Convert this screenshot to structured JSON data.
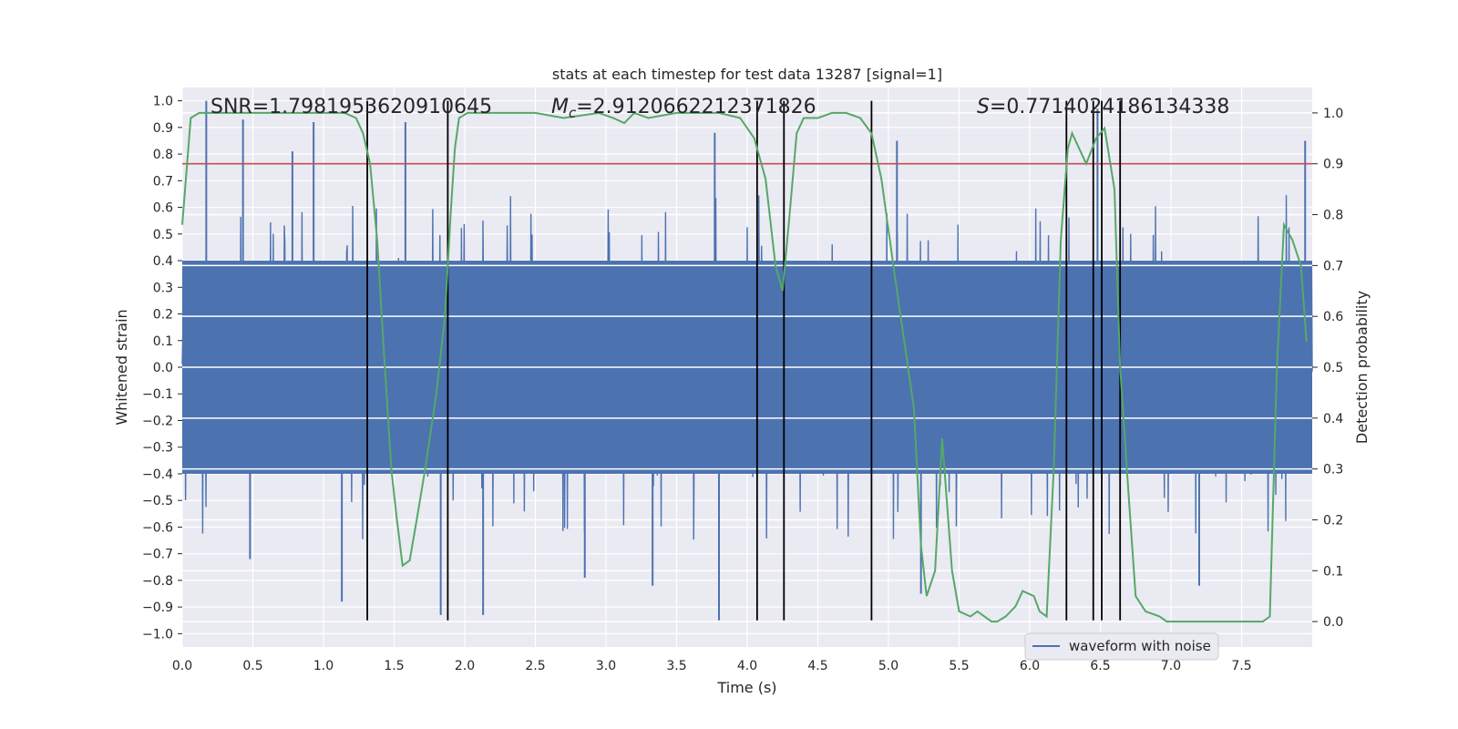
{
  "chart_data": {
    "type": "line",
    "title": "stats at each timestep for test data 13287 [signal=1]",
    "xlabel": "Time (s)",
    "ylabel_left": "Whitened strain",
    "ylabel_right": "Detection probability",
    "xlim": [
      0.0,
      8.0
    ],
    "ylim_left": [
      -1.05,
      1.05
    ],
    "ylim_right": [
      -0.05,
      1.05
    ],
    "xticks": [
      0.0,
      0.5,
      1.0,
      1.5,
      2.0,
      2.5,
      3.0,
      3.5,
      4.0,
      4.5,
      5.0,
      5.5,
      6.0,
      6.5,
      7.0,
      7.5
    ],
    "xtick_labels": [
      "0.0",
      "0.5",
      "1.0",
      "1.5",
      "2.0",
      "2.5",
      "3.0",
      "3.5",
      "4.0",
      "4.5",
      "5.0",
      "5.5",
      "6.0",
      "6.5",
      "7.0",
      "7.5"
    ],
    "yticks_left": [
      1.0,
      0.9,
      0.8,
      0.7,
      0.6,
      0.5,
      0.4,
      0.3,
      0.2,
      0.1,
      0.0,
      -0.1,
      -0.2,
      -0.3,
      -0.4,
      -0.5,
      -0.6,
      -0.7,
      -0.8,
      -0.9,
      -1.0
    ],
    "ytick_labels_left": [
      "1.0",
      "0.9",
      "0.8",
      "0.7",
      "0.6",
      "0.5",
      "0.4",
      "0.3",
      "0.2",
      "0.1",
      "0.0",
      "−0.1",
      "−0.2",
      "−0.3",
      "−0.4",
      "−0.5",
      "−0.6",
      "−0.7",
      "−0.8",
      "−0.9",
      "−1.0"
    ],
    "yticks_right": [
      1.0,
      0.9,
      0.8,
      0.7,
      0.6,
      0.5,
      0.4,
      0.3,
      0.2,
      0.1,
      0.0
    ],
    "ytick_labels_right": [
      "1.0",
      "0.9",
      "0.8",
      "0.7",
      "0.6",
      "0.5",
      "0.4",
      "0.3",
      "0.2",
      "0.1",
      "0.0"
    ],
    "grid": true,
    "threshold": {
      "axis": "right",
      "value": 0.9,
      "color": "#c44e52"
    },
    "vertical_lines": [
      1.31,
      1.88,
      4.07,
      4.26,
      4.88,
      6.26,
      6.45,
      6.51,
      6.64
    ],
    "vertical_line_range": [
      -0.95,
      1.0
    ],
    "annotations": {
      "snr": "SNR=1.7981953620910645",
      "mc_symbol": "M",
      "mc_sub": "c",
      "mc_value": "=2.9120662212371826",
      "s_symbol": "S",
      "s_value": "=0.7714024186134338"
    },
    "series": [
      {
        "name": "waveform with noise",
        "axis": "left",
        "color": "#4c72b0",
        "kind": "noise-envelope",
        "sample_rate_hz": 256,
        "envelope": {
          "core": 0.4,
          "typical_peak": 0.65,
          "max": 1.0,
          "min": -0.95
        },
        "spikes": [
          {
            "x": 0.17,
            "y": 1.0
          },
          {
            "x": 0.43,
            "y": 0.93
          },
          {
            "x": 0.78,
            "y": 0.81
          },
          {
            "x": 0.93,
            "y": 0.92
          },
          {
            "x": 1.58,
            "y": 0.92
          },
          {
            "x": 3.77,
            "y": 0.88
          },
          {
            "x": 5.06,
            "y": 0.85
          },
          {
            "x": 6.48,
            "y": 0.97
          },
          {
            "x": 7.95,
            "y": 0.85
          },
          {
            "x": 1.13,
            "y": -0.88
          },
          {
            "x": 1.83,
            "y": -0.93
          },
          {
            "x": 2.13,
            "y": -0.93
          },
          {
            "x": 3.8,
            "y": -0.95
          },
          {
            "x": 3.33,
            "y": -0.82
          },
          {
            "x": 5.23,
            "y": -0.85
          },
          {
            "x": 7.2,
            "y": -0.82
          },
          {
            "x": 2.85,
            "y": -0.79
          },
          {
            "x": 0.48,
            "y": -0.72
          }
        ]
      },
      {
        "name": "detection probability",
        "axis": "right",
        "color": "#55a868",
        "x": [
          0.0,
          0.06,
          0.12,
          0.2,
          0.3,
          0.5,
          0.8,
          1.0,
          1.15,
          1.23,
          1.28,
          1.33,
          1.38,
          1.43,
          1.48,
          1.52,
          1.56,
          1.61,
          1.66,
          1.72,
          1.8,
          1.86,
          1.9,
          1.93,
          1.96,
          2.02,
          2.2,
          2.5,
          2.7,
          2.95,
          3.05,
          3.13,
          3.2,
          3.3,
          3.5,
          3.8,
          3.95,
          4.05,
          4.13,
          4.2,
          4.25,
          4.3,
          4.35,
          4.4,
          4.5,
          4.6,
          4.7,
          4.8,
          4.88,
          4.95,
          5.05,
          5.18,
          5.23,
          5.27,
          5.33,
          5.38,
          5.45,
          5.5,
          5.58,
          5.63,
          5.68,
          5.73,
          5.77,
          5.83,
          5.9,
          5.95,
          6.03,
          6.07,
          6.12,
          6.17,
          6.22,
          6.27,
          6.3,
          6.35,
          6.4,
          6.47,
          6.53,
          6.6,
          6.64,
          6.7,
          6.75,
          6.82,
          6.92,
          6.97,
          7.05,
          7.2,
          7.4,
          7.55,
          7.65,
          7.7,
          7.75,
          7.8,
          7.86,
          7.92,
          7.96
        ],
        "y": [
          0.78,
          0.99,
          1.0,
          1.0,
          1.0,
          1.0,
          1.0,
          1.0,
          1.0,
          0.99,
          0.96,
          0.9,
          0.75,
          0.52,
          0.3,
          0.2,
          0.11,
          0.12,
          0.2,
          0.3,
          0.45,
          0.6,
          0.8,
          0.93,
          0.99,
          1.0,
          1.0,
          1.0,
          0.99,
          1.0,
          0.99,
          0.98,
          1.0,
          0.99,
          1.0,
          1.0,
          0.99,
          0.95,
          0.87,
          0.7,
          0.65,
          0.8,
          0.96,
          0.99,
          0.99,
          1.0,
          1.0,
          0.99,
          0.96,
          0.87,
          0.67,
          0.42,
          0.15,
          0.05,
          0.1,
          0.36,
          0.1,
          0.02,
          0.01,
          0.02,
          0.01,
          0.0,
          0.0,
          0.01,
          0.03,
          0.06,
          0.05,
          0.02,
          0.01,
          0.3,
          0.75,
          0.93,
          0.96,
          0.93,
          0.9,
          0.95,
          0.97,
          0.85,
          0.5,
          0.25,
          0.05,
          0.02,
          0.01,
          0.0,
          0.0,
          0.0,
          0.0,
          0.0,
          0.0,
          0.01,
          0.5,
          0.78,
          0.75,
          0.7,
          0.55
        ]
      }
    ],
    "legend": {
      "entries": [
        "waveform with noise"
      ],
      "position": "lower-right"
    }
  }
}
